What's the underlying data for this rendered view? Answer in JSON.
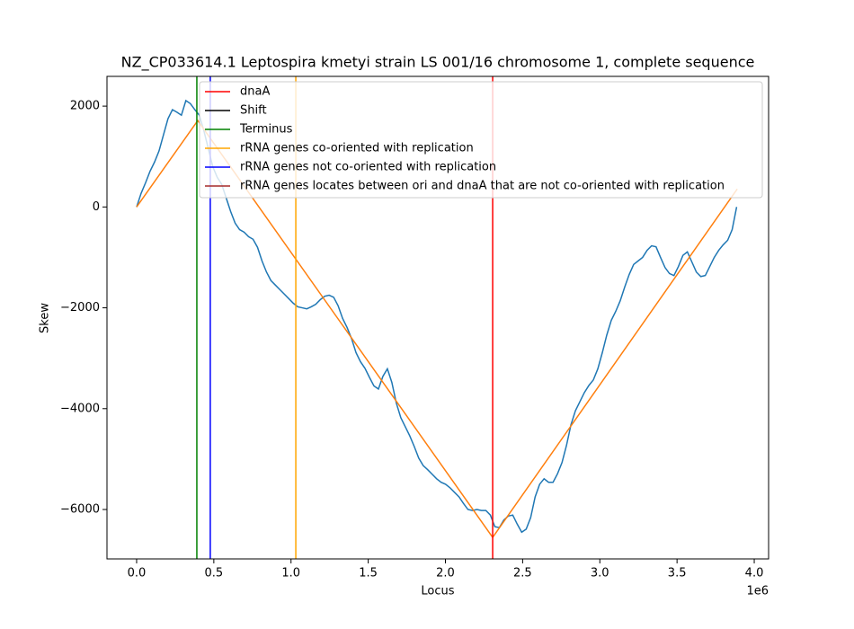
{
  "chart_data": {
    "type": "line",
    "title": "NZ_CP033614.1 Leptospira kmetyi strain LS 001/16 chromosome 1, complete sequence",
    "x_label": "Locus",
    "y_label": "Skew",
    "x_offset_label": "1e6",
    "xlim": [
      -192000,
      4093000
    ],
    "ylim": [
      -6980,
      2590
    ],
    "xticks": [
      {
        "value": 0,
        "label": "0.0"
      },
      {
        "value": 500000,
        "label": "0.5"
      },
      {
        "value": 1000000,
        "label": "1.0"
      },
      {
        "value": 1500000,
        "label": "1.5"
      },
      {
        "value": 2000000,
        "label": "2.0"
      },
      {
        "value": 2500000,
        "label": "2.5"
      },
      {
        "value": 3000000,
        "label": "3.0"
      },
      {
        "value": 3500000,
        "label": "3.5"
      },
      {
        "value": 4000000,
        "label": "4.0"
      }
    ],
    "yticks": [
      {
        "value": -6000,
        "label": "−6000"
      },
      {
        "value": -4000,
        "label": "−4000"
      },
      {
        "value": -2000,
        "label": "−2000"
      },
      0,
      2000
    ],
    "skew": {
      "color": "#1f77b4",
      "x": [
        0,
        29000,
        58000,
        87000,
        116000,
        145000,
        174000,
        203000,
        232000,
        261000,
        290000,
        319000,
        348000,
        377000,
        406000,
        435000,
        464000,
        493000,
        522000,
        551000,
        580000,
        609000,
        638000,
        667000,
        696000,
        725000,
        754000,
        783000,
        812000,
        841000,
        870000,
        899000,
        928000,
        957000,
        986000,
        1015000,
        1044000,
        1073000,
        1102000,
        1131000,
        1160000,
        1189000,
        1218000,
        1247000,
        1276000,
        1305000,
        1334000,
        1363000,
        1392000,
        1421000,
        1450000,
        1479000,
        1508000,
        1537000,
        1566000,
        1595000,
        1624000,
        1653000,
        1682000,
        1711000,
        1740000,
        1769000,
        1798000,
        1827000,
        1856000,
        1885000,
        1914000,
        1943000,
        1972000,
        2001000,
        2030000,
        2059000,
        2088000,
        2117000,
        2146000,
        2175000,
        2204000,
        2233000,
        2262000,
        2291000,
        2320000,
        2349000,
        2378000,
        2407000,
        2436000,
        2465000,
        2494000,
        2523000,
        2552000,
        2581000,
        2610000,
        2639000,
        2668000,
        2697000,
        2726000,
        2755000,
        2784000,
        2813000,
        2842000,
        2871000,
        2900000,
        2929000,
        2958000,
        2987000,
        3016000,
        3045000,
        3074000,
        3103000,
        3132000,
        3161000,
        3190000,
        3219000,
        3248000,
        3277000,
        3306000,
        3335000,
        3364000,
        3393000,
        3422000,
        3451000,
        3480000,
        3509000,
        3538000,
        3567000,
        3596000,
        3625000,
        3654000,
        3683000,
        3712000,
        3741000,
        3770000,
        3799000,
        3828000,
        3857000,
        3886000
      ],
      "values": [
        0,
        270,
        480,
        710,
        890,
        1110,
        1430,
        1750,
        1930,
        1880,
        1820,
        2110,
        2050,
        1930,
        1820,
        1520,
        1160,
        800,
        590,
        450,
        180,
        -90,
        -320,
        -450,
        -500,
        -590,
        -640,
        -800,
        -1070,
        -1290,
        -1460,
        -1550,
        -1640,
        -1730,
        -1820,
        -1910,
        -1980,
        -2000,
        -2020,
        -1980,
        -1930,
        -1840,
        -1770,
        -1750,
        -1790,
        -1960,
        -2210,
        -2390,
        -2610,
        -2890,
        -3070,
        -3200,
        -3380,
        -3550,
        -3610,
        -3360,
        -3210,
        -3480,
        -3890,
        -4180,
        -4360,
        -4540,
        -4750,
        -4980,
        -5130,
        -5210,
        -5300,
        -5390,
        -5460,
        -5500,
        -5570,
        -5660,
        -5750,
        -5880,
        -6000,
        -6020,
        -6000,
        -6020,
        -6020,
        -6110,
        -6340,
        -6360,
        -6210,
        -6130,
        -6110,
        -6290,
        -6450,
        -6390,
        -6160,
        -5750,
        -5500,
        -5390,
        -5460,
        -5460,
        -5290,
        -5070,
        -4730,
        -4320,
        -4040,
        -3860,
        -3680,
        -3540,
        -3430,
        -3210,
        -2890,
        -2540,
        -2250,
        -2070,
        -1860,
        -1590,
        -1340,
        -1140,
        -1070,
        -1000,
        -860,
        -770,
        -790,
        -1000,
        -1200,
        -1320,
        -1360,
        -1180,
        -960,
        -890,
        -1090,
        -1290,
        -1380,
        -1360,
        -1180,
        -1000,
        -860,
        -750,
        -660,
        -450,
        0
      ]
    },
    "skew_fit": {
      "color": "#ff7f0e",
      "x": [
        0,
        396000,
        2306000,
        3890000
      ],
      "values": [
        0,
        1714,
        -6554,
        357
      ]
    },
    "vlines": [
      {
        "name": "dnaA",
        "color": "#ff0000",
        "x": 2306000
      },
      {
        "name": "Shift",
        "color": "#000000",
        "x": null
      },
      {
        "name": "Terminus",
        "color": "#008000",
        "x": 390000
      },
      {
        "name": "rRNA genes co-oriented with replication",
        "color": "#ffa500",
        "x": 1031000
      },
      {
        "name": "rRNA genes not co-oriented with replication",
        "color": "#0000ff",
        "x": 477000
      },
      {
        "name": "rRNA genes locates between ori and dnaA that are not co-oriented with replication",
        "color": "#a52a2a",
        "x": null
      }
    ],
    "legend": "upper right"
  }
}
